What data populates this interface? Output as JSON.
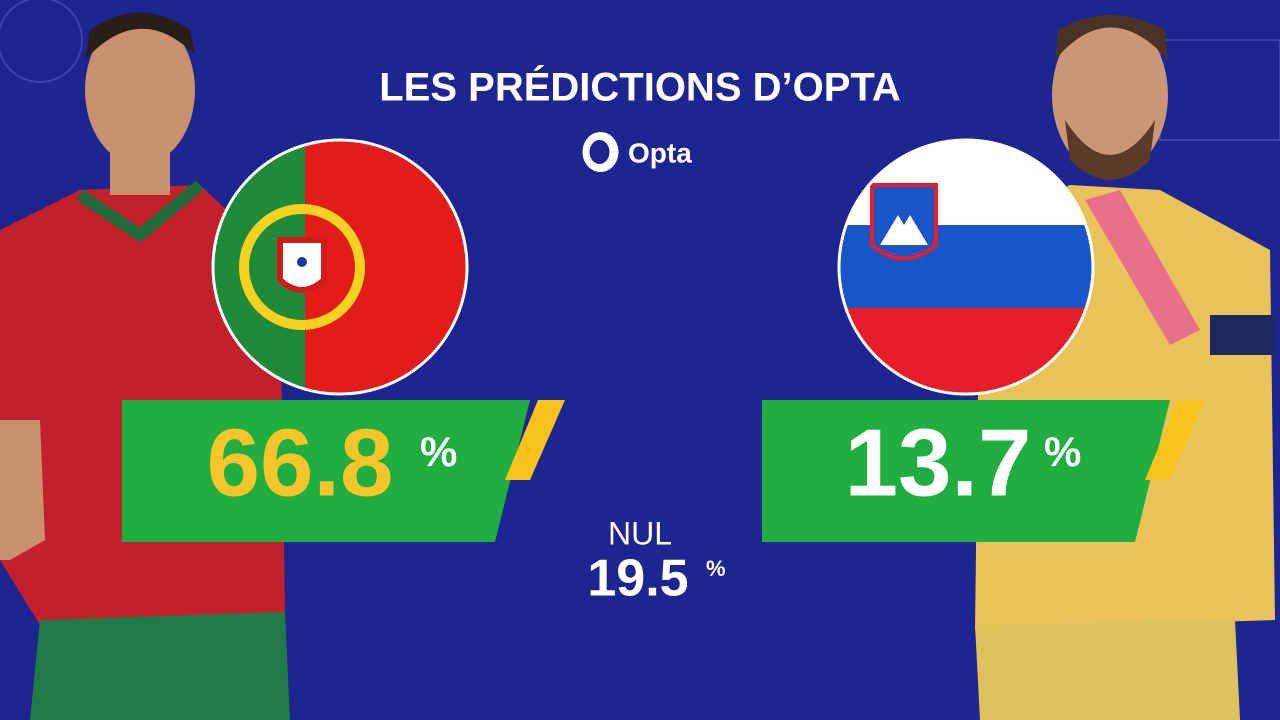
{
  "header": {
    "title": "LES PRÉDICTIONS D’OPTA",
    "brand": "Opta"
  },
  "predictions": {
    "home": {
      "value": "66.8",
      "unit": "%"
    },
    "away": {
      "value": "13.7",
      "unit": "%"
    },
    "draw": {
      "label": "NUL",
      "value": "19.5",
      "unit": "%"
    }
  }
}
